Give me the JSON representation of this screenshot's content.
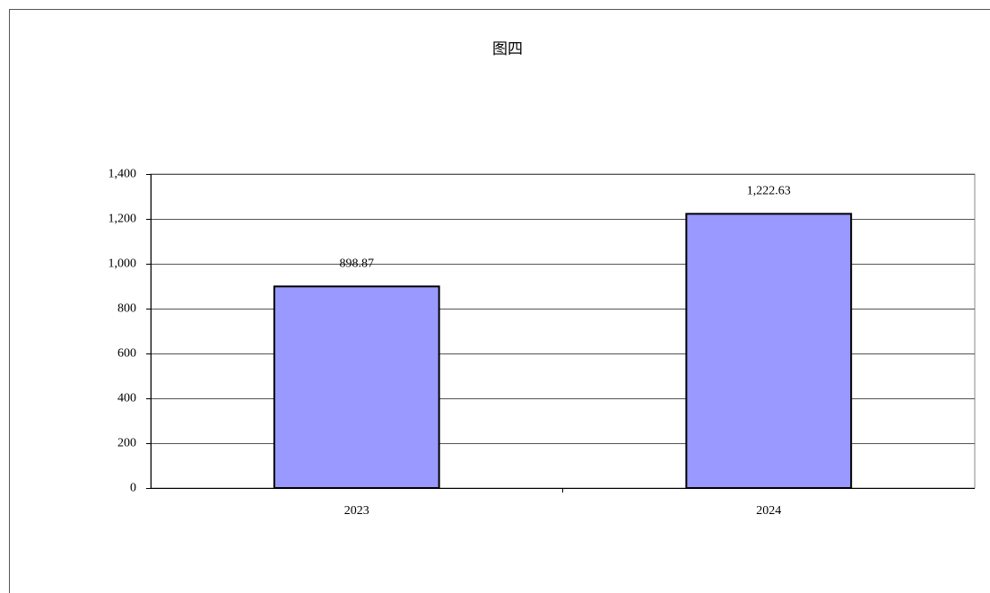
{
  "chart_data": {
    "type": "bar",
    "title": "图四",
    "categories": [
      "2023",
      "2024"
    ],
    "values": [
      898.87,
      1222.63
    ],
    "value_labels": [
      "898.87",
      "1,222.63"
    ],
    "color": "#9999ff",
    "ylim": [
      0,
      1400
    ],
    "yticks": [
      0,
      200,
      400,
      600,
      800,
      {
        "value": 1000,
        "label": "1,000"
      },
      {
        "value": 1200,
        "label": "1,200"
      },
      {
        "value": 1400,
        "label": "1,400"
      }
    ],
    "grid": true
  }
}
